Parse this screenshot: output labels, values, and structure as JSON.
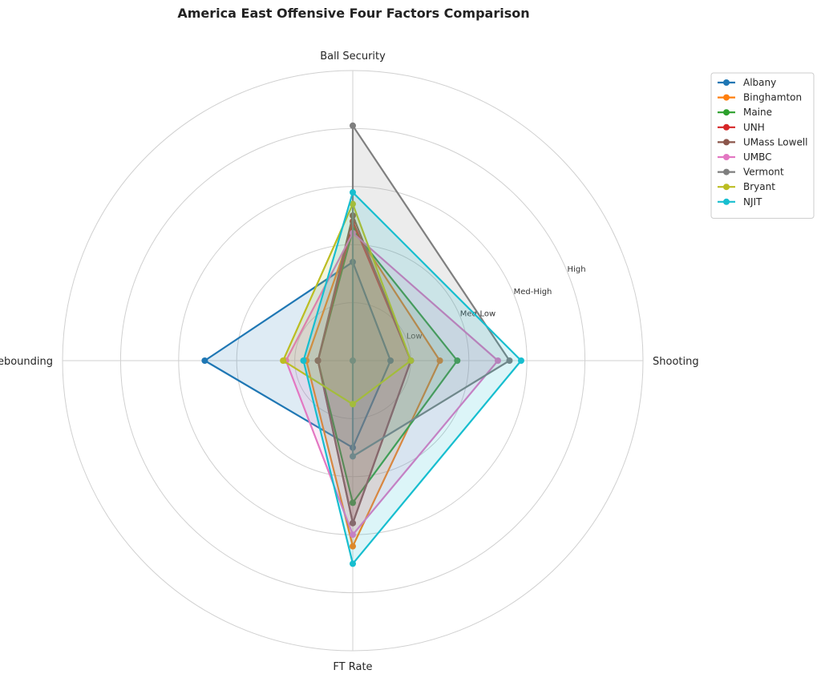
{
  "chart_data": {
    "type": "radar",
    "title": "America East Offensive Four Factors Comparison",
    "axes": [
      "Shooting",
      "Ball Security",
      "Off Rebounding",
      "FT Rate"
    ],
    "rlim": [
      0,
      5
    ],
    "ring_ticks": [
      1,
      2,
      3,
      4,
      5
    ],
    "ring_labels": [
      "Low",
      "Med-Low",
      "Med-High",
      "High",
      ""
    ],
    "grid": true,
    "legend_position": "top-right",
    "series": [
      {
        "name": "Albany",
        "color": "#1f77b4",
        "values": [
          0.65,
          1.7,
          2.55,
          1.5
        ]
      },
      {
        "name": "Binghamton",
        "color": "#ff7f0e",
        "values": [
          1.5,
          2.3,
          0.8,
          3.2
        ]
      },
      {
        "name": "Maine",
        "color": "#2ca02c",
        "values": [
          1.8,
          2.25,
          0.6,
          2.45
        ]
      },
      {
        "name": "UNH",
        "color": "#d62728",
        "values": [
          1.0,
          2.4,
          0.6,
          2.8
        ]
      },
      {
        "name": "UMass Lowell",
        "color": "#8c564b",
        "values": [
          1.0,
          2.5,
          0.6,
          2.8
        ]
      },
      {
        "name": "UMBC",
        "color": "#e377c2",
        "values": [
          2.5,
          2.2,
          1.15,
          3.0
        ]
      },
      {
        "name": "Vermont",
        "color": "#7f7f7f",
        "values": [
          2.7,
          4.05,
          0.0,
          1.65
        ]
      },
      {
        "name": "Bryant",
        "color": "#bcbd22",
        "values": [
          1.0,
          2.7,
          1.2,
          0.75
        ]
      },
      {
        "name": "NJIT",
        "color": "#17becf",
        "values": [
          2.9,
          2.9,
          0.85,
          3.5
        ]
      }
    ]
  }
}
